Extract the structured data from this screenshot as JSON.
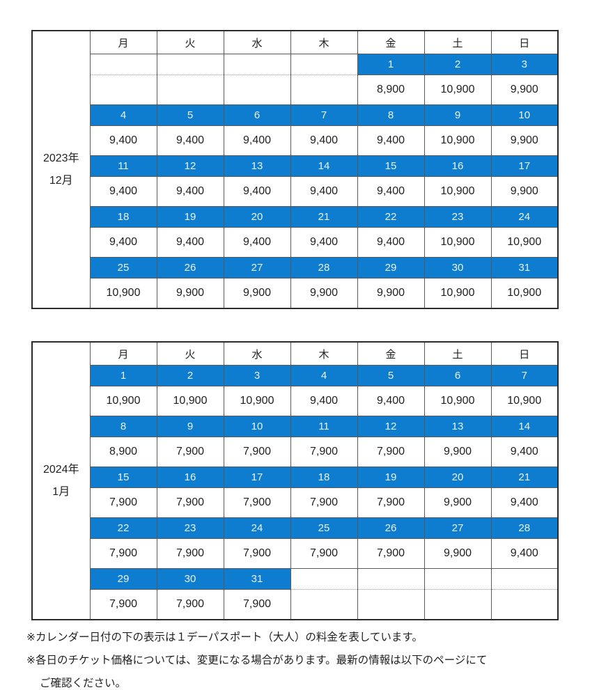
{
  "colors": {
    "date_cell_bg": "#0e7dd0",
    "date_cell_text": "#e9f4fc",
    "border": "#595959",
    "text": "#1f1f1f"
  },
  "calendars": [
    {
      "year_label": "2023年",
      "month_label": "12月",
      "day_headers": [
        "月",
        "火",
        "水",
        "木",
        "金",
        "土",
        "日"
      ],
      "weeks": [
        {
          "dates": [
            "",
            "",
            "",
            "",
            "1",
            "2",
            "3"
          ],
          "prices": [
            "",
            "",
            "",
            "",
            "8,900",
            "10,900",
            "9,900"
          ]
        },
        {
          "dates": [
            "4",
            "5",
            "6",
            "7",
            "8",
            "9",
            "10"
          ],
          "prices": [
            "9,400",
            "9,400",
            "9,400",
            "9,400",
            "9,400",
            "10,900",
            "9,900"
          ]
        },
        {
          "dates": [
            "11",
            "12",
            "13",
            "14",
            "15",
            "16",
            "17"
          ],
          "prices": [
            "9,400",
            "9,400",
            "9,400",
            "9,400",
            "9,400",
            "10,900",
            "9,900"
          ]
        },
        {
          "dates": [
            "18",
            "19",
            "20",
            "21",
            "22",
            "23",
            "24"
          ],
          "prices": [
            "9,400",
            "9,400",
            "9,400",
            "9,400",
            "9,400",
            "10,900",
            "10,900"
          ]
        },
        {
          "dates": [
            "25",
            "26",
            "27",
            "28",
            "29",
            "30",
            "31"
          ],
          "prices": [
            "10,900",
            "9,900",
            "9,900",
            "9,900",
            "9,900",
            "10,900",
            "10,900"
          ]
        }
      ]
    },
    {
      "year_label": "2024年",
      "month_label": "1月",
      "day_headers": [
        "月",
        "火",
        "水",
        "木",
        "金",
        "土",
        "日"
      ],
      "weeks": [
        {
          "dates": [
            "1",
            "2",
            "3",
            "4",
            "5",
            "6",
            "7"
          ],
          "prices": [
            "10,900",
            "10,900",
            "10,900",
            "9,400",
            "9,400",
            "10,900",
            "10,900"
          ]
        },
        {
          "dates": [
            "8",
            "9",
            "10",
            "11",
            "12",
            "13",
            "14"
          ],
          "prices": [
            "8,900",
            "7,900",
            "7,900",
            "7,900",
            "7,900",
            "9,900",
            "9,400"
          ]
        },
        {
          "dates": [
            "15",
            "16",
            "17",
            "18",
            "19",
            "20",
            "21"
          ],
          "prices": [
            "7,900",
            "7,900",
            "7,900",
            "7,900",
            "7,900",
            "9,900",
            "9,400"
          ]
        },
        {
          "dates": [
            "22",
            "23",
            "24",
            "25",
            "26",
            "27",
            "28"
          ],
          "prices": [
            "7,900",
            "7,900",
            "7,900",
            "7,900",
            "7,900",
            "9,900",
            "9,400"
          ]
        },
        {
          "dates": [
            "29",
            "30",
            "31",
            "",
            "",
            "",
            ""
          ],
          "prices": [
            "7,900",
            "7,900",
            "7,900",
            "",
            "",
            "",
            ""
          ]
        }
      ]
    }
  ],
  "notes": [
    "※カレンダー日付の下の表示は１デーパスポート（大人）の料金を表しています。",
    "※各日のチケット価格については、変更になる場合があります。最新の情報は以下のページにて",
    "ご確認ください。"
  ]
}
